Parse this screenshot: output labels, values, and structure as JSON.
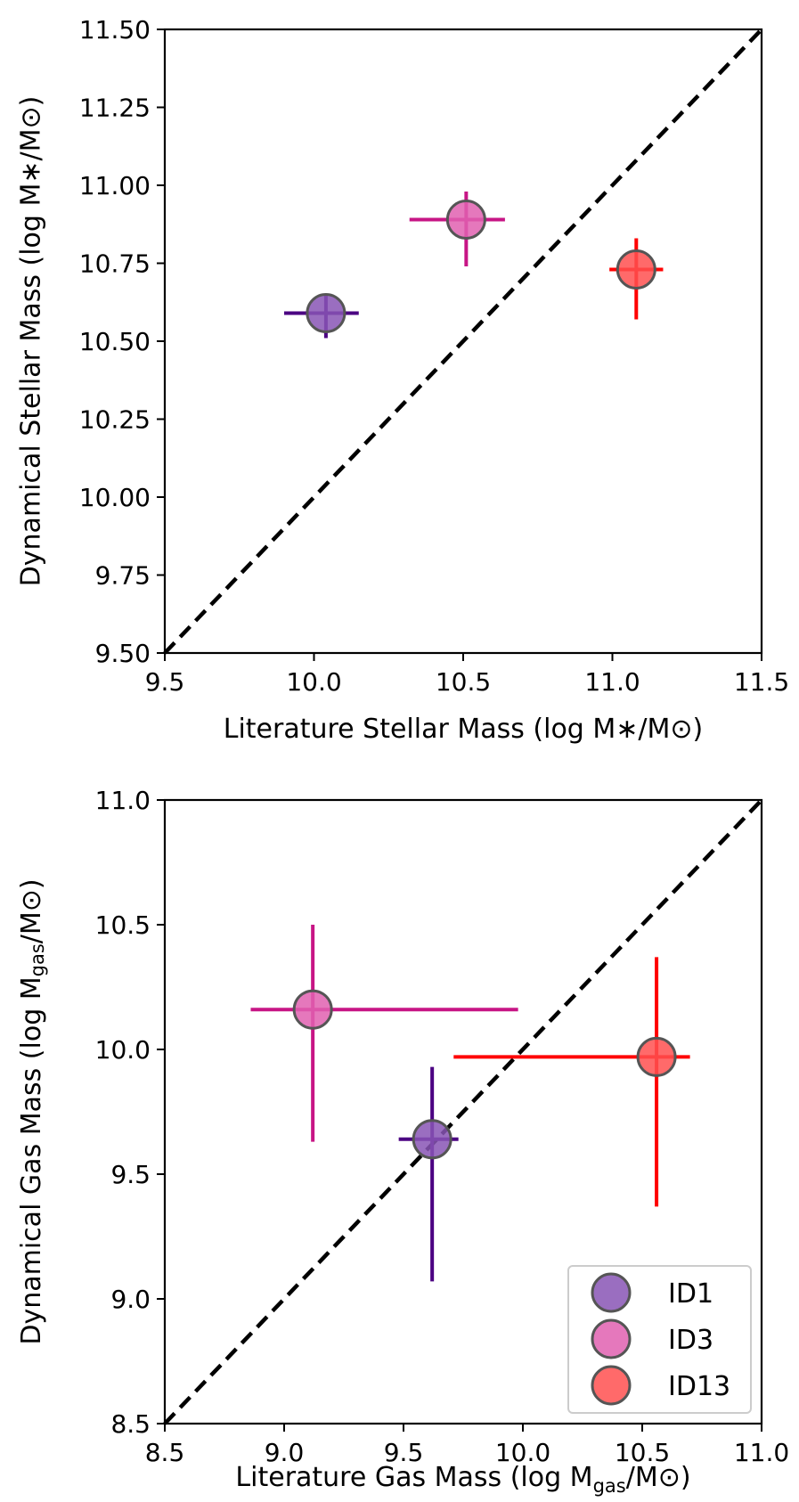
{
  "chart_data": [
    {
      "type": "scatter",
      "xlabel": "Literature Stellar Mass (log M∗/M⊙)",
      "ylabel": "Dynamical Stellar Mass (log M∗/M⊙)",
      "xlim": [
        9.5,
        11.5
      ],
      "ylim": [
        9.5,
        11.5
      ],
      "x_ticks": [
        "9.5",
        "10.0",
        "10.5",
        "11.0",
        "11.5"
      ],
      "y_ticks": [
        "9.50",
        "9.75",
        "10.00",
        "10.25",
        "10.50",
        "10.75",
        "11.00",
        "11.25",
        "11.50"
      ],
      "one_to_one_line": true,
      "grid": false,
      "points": [
        {
          "name": "ID1",
          "x": 10.04,
          "y": 10.59,
          "xerr": [
            0.14,
            0.11
          ],
          "yerr": [
            0.08,
            0.06
          ],
          "marker_color": "#8855b5",
          "err_color": "#4b0082"
        },
        {
          "name": "ID3",
          "x": 10.51,
          "y": 10.89,
          "xerr": [
            0.19,
            0.13
          ],
          "yerr": [
            0.15,
            0.09
          ],
          "marker_color": "#e060b0",
          "err_color": "#c71585"
        },
        {
          "name": "ID13",
          "x": 11.08,
          "y": 10.73,
          "xerr": [
            0.09,
            0.09
          ],
          "yerr": [
            0.16,
            0.1
          ],
          "marker_color": "#ff5050",
          "err_color": "#ff0000"
        }
      ]
    },
    {
      "type": "scatter",
      "xlabel": "Literature Gas Mass (log M",
      "xlabel_sub": "gas",
      "xlabel_end": "/M⊙)",
      "ylabel": "Dynamical Gas Mass (log M",
      "ylabel_sub": "gas",
      "ylabel_end": "/M⊙)",
      "xlim": [
        8.5,
        11.0
      ],
      "ylim": [
        8.5,
        11.0
      ],
      "x_ticks": [
        "8.5",
        "9.0",
        "9.5",
        "10.0",
        "10.5",
        "11.0"
      ],
      "y_ticks": [
        "8.5",
        "9.0",
        "9.5",
        "10.0",
        "10.5",
        "11.0"
      ],
      "one_to_one_line": true,
      "grid": false,
      "legend": {
        "placement": "lower-right",
        "entries": [
          "ID1",
          "ID3",
          "ID13"
        ]
      },
      "points": [
        {
          "name": "ID1",
          "x": 9.62,
          "y": 9.64,
          "xerr": [
            0.14,
            0.11
          ],
          "yerr": [
            0.57,
            0.29
          ],
          "marker_color": "#8855b5",
          "err_color": "#4b0082"
        },
        {
          "name": "ID3",
          "x": 9.12,
          "y": 10.16,
          "xerr": [
            0.26,
            0.86
          ],
          "yerr": [
            0.53,
            0.34
          ],
          "marker_color": "#e060b0",
          "err_color": "#c71585"
        },
        {
          "name": "ID13",
          "x": 10.56,
          "y": 9.97,
          "xerr": [
            0.85,
            0.14
          ],
          "yerr": [
            0.6,
            0.4
          ],
          "marker_color": "#ff5050",
          "err_color": "#ff0000"
        }
      ]
    }
  ]
}
